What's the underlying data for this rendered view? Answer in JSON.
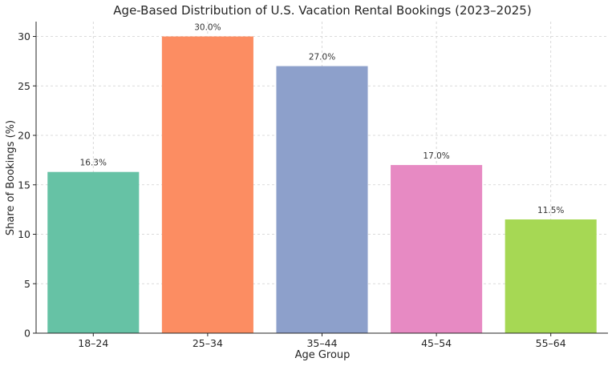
{
  "chart_data": {
    "type": "bar",
    "title": "Age-Based Distribution of U.S. Vacation Rental Bookings (2023–2025)",
    "xlabel": "Age Group",
    "ylabel": "Share of Bookings (%)",
    "categories": [
      "18–24",
      "25–34",
      "35–44",
      "45–54",
      "55–64"
    ],
    "values": [
      16.3,
      30.0,
      27.0,
      17.0,
      11.5
    ],
    "data_labels": [
      "16.3%",
      "30.0%",
      "27.0%",
      "17.0%",
      "11.5%"
    ],
    "colors": [
      "#66c2a5",
      "#fc8d62",
      "#8da0cb",
      "#e78ac3",
      "#a6d854"
    ],
    "ylim": [
      0,
      31.5
    ],
    "yticks": [
      0,
      5,
      10,
      15,
      20,
      25,
      30
    ],
    "grid": true
  }
}
